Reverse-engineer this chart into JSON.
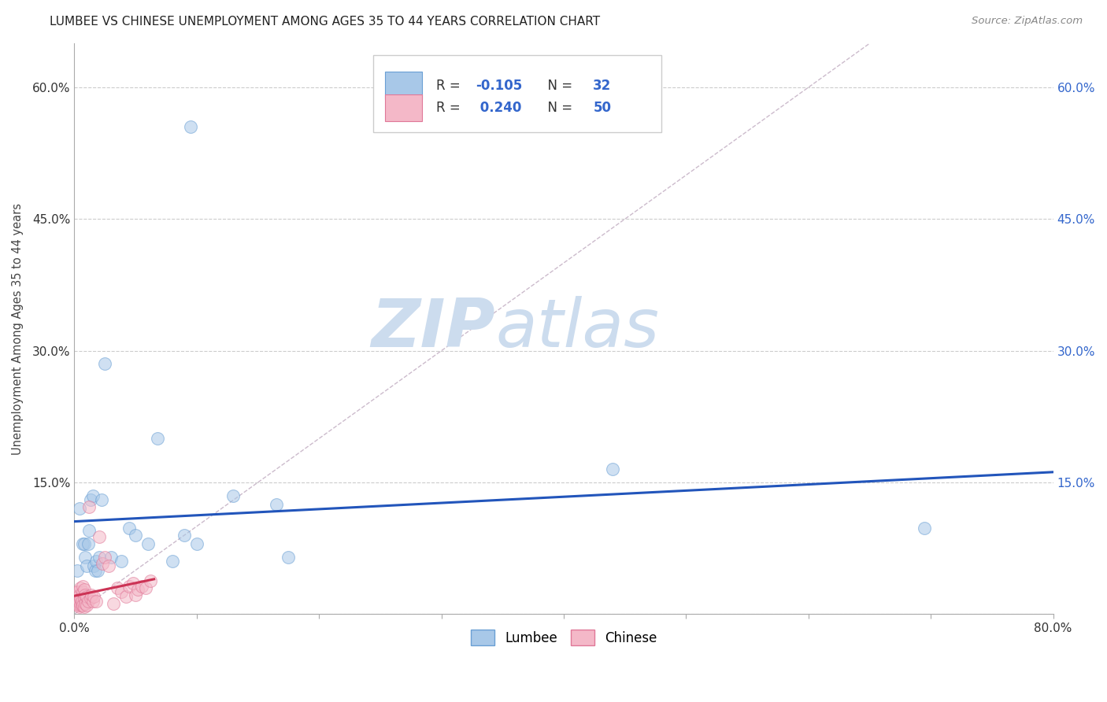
{
  "title": "LUMBEE VS CHINESE UNEMPLOYMENT AMONG AGES 35 TO 44 YEARS CORRELATION CHART",
  "source": "Source: ZipAtlas.com",
  "ylabel": "Unemployment Among Ages 35 to 44 years",
  "xlim": [
    0,
    0.8
  ],
  "ylim": [
    0,
    0.65
  ],
  "xticks": [
    0.0,
    0.1,
    0.2,
    0.3,
    0.4,
    0.5,
    0.6,
    0.7,
    0.8
  ],
  "yticks": [
    0.0,
    0.15,
    0.3,
    0.45,
    0.6
  ],
  "background_color": "#ffffff",
  "grid_color": "#cccccc",
  "watermark_zip": "ZIP",
  "watermark_atlas": "atlas",
  "watermark_color": "#ccdcee",
  "lumbee_color": "#a8c8e8",
  "lumbee_edge": "#6a9fd4",
  "chinese_color": "#f4b8c8",
  "chinese_edge": "#e07898",
  "lumbee_R": -0.105,
  "lumbee_N": 32,
  "chinese_R": 0.24,
  "chinese_N": 50,
  "lumbee_line_color": "#2255bb",
  "chinese_line_color": "#cc3355",
  "diag_line_color": "#ccbbcc",
  "r_n_color": "#3366cc",
  "lumbee_x": [
    0.002,
    0.004,
    0.007,
    0.008,
    0.009,
    0.01,
    0.011,
    0.012,
    0.013,
    0.015,
    0.016,
    0.017,
    0.018,
    0.019,
    0.02,
    0.022,
    0.025,
    0.03,
    0.038,
    0.045,
    0.05,
    0.06,
    0.068,
    0.08,
    0.09,
    0.095,
    0.1,
    0.13,
    0.165,
    0.175,
    0.44,
    0.695
  ],
  "lumbee_y": [
    0.05,
    0.12,
    0.08,
    0.08,
    0.065,
    0.055,
    0.08,
    0.095,
    0.13,
    0.135,
    0.055,
    0.05,
    0.06,
    0.05,
    0.065,
    0.13,
    0.285,
    0.065,
    0.06,
    0.098,
    0.09,
    0.08,
    0.2,
    0.06,
    0.09,
    0.555,
    0.08,
    0.135,
    0.125,
    0.065,
    0.165,
    0.098
  ],
  "chinese_x": [
    0.0,
    0.001,
    0.001,
    0.002,
    0.002,
    0.002,
    0.003,
    0.003,
    0.003,
    0.003,
    0.004,
    0.004,
    0.004,
    0.005,
    0.005,
    0.005,
    0.006,
    0.006,
    0.007,
    0.007,
    0.007,
    0.008,
    0.008,
    0.008,
    0.009,
    0.009,
    0.01,
    0.01,
    0.011,
    0.012,
    0.013,
    0.014,
    0.015,
    0.016,
    0.018,
    0.02,
    0.023,
    0.025,
    0.028,
    0.032,
    0.035,
    0.038,
    0.042,
    0.045,
    0.048,
    0.05,
    0.052,
    0.055,
    0.058,
    0.062
  ],
  "chinese_y": [
    0.015,
    0.02,
    0.018,
    0.012,
    0.018,
    0.025,
    0.01,
    0.015,
    0.02,
    0.025,
    0.008,
    0.014,
    0.022,
    0.01,
    0.018,
    0.03,
    0.01,
    0.015,
    0.01,
    0.025,
    0.032,
    0.008,
    0.018,
    0.028,
    0.012,
    0.022,
    0.01,
    0.02,
    0.015,
    0.122,
    0.018,
    0.022,
    0.015,
    0.02,
    0.015,
    0.088,
    0.058,
    0.065,
    0.055,
    0.012,
    0.03,
    0.025,
    0.02,
    0.032,
    0.035,
    0.022,
    0.028,
    0.032,
    0.03,
    0.038
  ],
  "marker_size": 130,
  "alpha": 0.55
}
